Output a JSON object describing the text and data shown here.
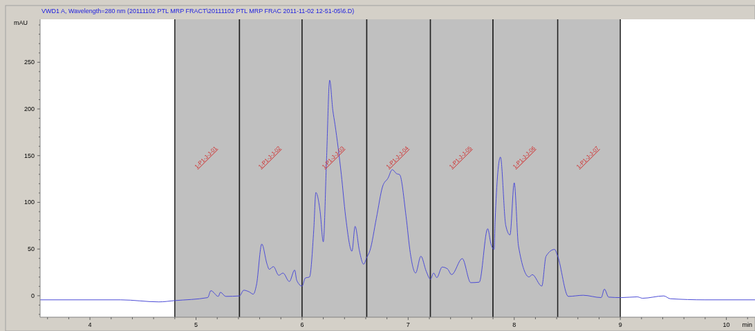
{
  "chart_data": {
    "type": "line",
    "title": "VWD1 A, Wavelength=280 nm (20111102 PTL MRP FRACT\\20111102 PTL MRP FRAC 2011-11-02 12-51-05\\6.D)",
    "xlabel": "min",
    "ylabel": "mAU",
    "x": [
      3.53,
      4.29,
      4.65,
      4.8,
      5.11,
      5.14,
      5.21,
      5.23,
      5.28,
      5.41,
      5.45,
      5.5,
      5.54,
      5.57,
      5.62,
      5.67,
      5.69,
      5.73,
      5.78,
      5.82,
      5.88,
      5.93,
      5.95,
      6.0,
      6.03,
      6.07,
      6.11,
      6.13,
      6.17,
      6.2,
      6.23,
      6.26,
      6.29,
      6.31,
      6.37,
      6.41,
      6.47,
      6.5,
      6.54,
      6.58,
      6.61,
      6.64,
      6.7,
      6.76,
      6.81,
      6.85,
      6.89,
      6.92,
      6.98,
      7.02,
      7.07,
      7.12,
      7.17,
      7.21,
      7.24,
      7.27,
      7.32,
      7.37,
      7.41,
      7.51,
      7.59,
      7.67,
      7.75,
      7.78,
      7.81,
      7.82,
      7.87,
      7.92,
      7.96,
      8.0,
      8.04,
      8.14,
      8.17,
      8.26,
      8.3,
      8.38,
      8.41,
      8.51,
      8.65,
      8.82,
      8.85,
      8.89,
      9.01,
      9.16,
      9.21,
      9.41,
      9.47,
      9.8,
      10.27
    ],
    "series": [
      {
        "color": "#4b4bd6",
        "values": [
          -4.4,
          -4.4,
          -6.6,
          -5.2,
          -2,
          5.4,
          -0.7,
          3.7,
          -0.7,
          -0.2,
          5.9,
          4.2,
          1.7,
          11.6,
          55.3,
          33.7,
          28.3,
          31.2,
          21.9,
          24.3,
          15.2,
          27.5,
          16.4,
          10.3,
          18.9,
          20.1,
          70.5,
          110.6,
          90.2,
          57.7,
          144.3,
          230.8,
          198.4,
          183.6,
          129.6,
          85.3,
          47.7,
          74.3,
          48.4,
          33.7,
          41.1,
          48.4,
          82.8,
          117.3,
          125.9,
          135,
          130.8,
          129.6,
          85.3,
          45.9,
          24.3,
          42.3,
          26.3,
          17.7,
          24.3,
          19.4,
          30.7,
          28.8,
          22.6,
          39.8,
          14,
          14.5,
          71.8,
          55.8,
          49.6,
          80.4,
          148.5,
          75.4,
          65.1,
          120.9,
          53.3,
          20.1,
          22.6,
          10.3,
          42.3,
          49.6,
          42.3,
          -0.7,
          0.5,
          -2,
          7.1,
          -1.5,
          -2,
          -1.2,
          -2.7,
          -0.2,
          -3.2,
          -4.4,
          -4.4
        ]
      }
    ],
    "xlim": [
      3.53,
      10.27
    ],
    "ylim": [
      -23,
      296
    ],
    "xticks": [
      {
        "value": 3.6,
        "label": null
      },
      {
        "value": 3.8,
        "label": null
      },
      4,
      {
        "value": 4.2,
        "label": null
      },
      {
        "value": 4.4,
        "label": null
      },
      {
        "value": 4.6,
        "label": null
      },
      {
        "value": 4.8,
        "label": null
      },
      5,
      {
        "value": 5.2,
        "label": null
      },
      {
        "value": 5.4,
        "label": null
      },
      {
        "value": 5.6,
        "label": null
      },
      {
        "value": 5.8,
        "label": null
      },
      6,
      {
        "value": 6.2,
        "label": null
      },
      {
        "value": 6.4,
        "label": null
      },
      {
        "value": 6.6,
        "label": null
      },
      {
        "value": 6.8,
        "label": null
      },
      7,
      {
        "value": 7.2,
        "label": null
      },
      {
        "value": 7.4,
        "label": null
      },
      {
        "value": 7.6,
        "label": null
      },
      {
        "value": 7.8,
        "label": null
      },
      8,
      {
        "value": 8.2,
        "label": null
      },
      {
        "value": 8.4,
        "label": null
      },
      {
        "value": 8.6,
        "label": null
      },
      {
        "value": 8.8,
        "label": null
      },
      9,
      {
        "value": 9.2,
        "label": null
      },
      {
        "value": 9.4,
        "label": null
      },
      {
        "value": 9.6,
        "label": null
      },
      {
        "value": 9.8,
        "label": null
      },
      10,
      {
        "value": 10.2,
        "label": null
      }
    ],
    "yticks": [
      {
        "value": -20,
        "label": null
      },
      {
        "value": -10,
        "label": null
      },
      0,
      {
        "value": 10,
        "label": null
      },
      {
        "value": 20,
        "label": null
      },
      {
        "value": 30,
        "label": null
      },
      {
        "value": 40,
        "label": null
      },
      50,
      {
        "value": 60,
        "label": null
      },
      {
        "value": 70,
        "label": null
      },
      {
        "value": 80,
        "label": null
      },
      {
        "value": 90,
        "label": null
      },
      100,
      {
        "value": 110,
        "label": null
      },
      {
        "value": 120,
        "label": null
      },
      {
        "value": 130,
        "label": null
      },
      {
        "value": 140,
        "label": null
      },
      150,
      {
        "value": 160,
        "label": null
      },
      {
        "value": 170,
        "label": null
      },
      {
        "value": 180,
        "label": null
      },
      {
        "value": 190,
        "label": null
      },
      200,
      {
        "value": 210,
        "label": null
      },
      {
        "value": 220,
        "label": null
      },
      {
        "value": 230,
        "label": null
      },
      {
        "value": 240,
        "label": null
      },
      250,
      {
        "value": 260,
        "label": null
      },
      {
        "value": 270,
        "label": null
      },
      {
        "value": 280,
        "label": null
      },
      {
        "value": 290,
        "label": null
      }
    ],
    "bands": [
      {
        "axis": "x",
        "from": 4.8,
        "to": 5.41,
        "label": "1-P1-J-J-01",
        "color": "#c0c0c0"
      },
      {
        "axis": "x",
        "from": 5.41,
        "to": 6.0,
        "label": "1-P1-J-J-02",
        "color": "#c0c0c0"
      },
      {
        "axis": "x",
        "from": 6.0,
        "to": 6.61,
        "label": "1-P1-J-J-03",
        "color": "#c0c0c0"
      },
      {
        "axis": "x",
        "from": 6.61,
        "to": 7.21,
        "label": "1-P1-J-J-04",
        "color": "#c0c0c0"
      },
      {
        "axis": "x",
        "from": 7.21,
        "to": 7.8,
        "label": "1-P1-J-J-05",
        "color": "#c0c0c0"
      },
      {
        "axis": "x",
        "from": 7.8,
        "to": 8.41,
        "label": "1-P1-J-J-06",
        "color": "#c0c0c0"
      },
      {
        "axis": "x",
        "from": 8.41,
        "to": 9.0,
        "label": "1-P1-J-J-07",
        "color": "#c0c0c0"
      }
    ]
  }
}
